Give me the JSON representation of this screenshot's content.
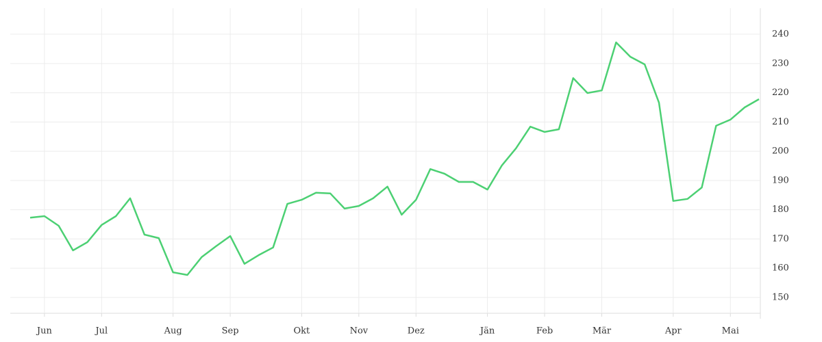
{
  "chart_data": {
    "type": "line",
    "categories": [
      null,
      "Jun",
      null,
      null,
      null,
      "Jul",
      null,
      null,
      null,
      null,
      "Aug",
      null,
      null,
      null,
      "Sep",
      null,
      null,
      null,
      null,
      "Okt",
      null,
      null,
      null,
      "Nov",
      null,
      null,
      null,
      "Dez",
      null,
      null,
      null,
      null,
      "Jän",
      null,
      null,
      null,
      "Feb",
      null,
      null,
      null,
      "Mär",
      null,
      null,
      null,
      null,
      "Apr",
      null,
      null,
      null,
      "Mai",
      null,
      null
    ],
    "series": [
      {
        "color": "#4cd073",
        "values": [
          177.3,
          177.8,
          174.5,
          166.1,
          168.9,
          174.8,
          177.8,
          183.9,
          171.5,
          170.3,
          158.6,
          157.7,
          163.8,
          167.5,
          171.0,
          161.5,
          164.5,
          167.1,
          182.0,
          183.4,
          185.8,
          185.6,
          180.4,
          181.3,
          183.9,
          187.9,
          178.3,
          183.4,
          193.9,
          192.3,
          189.5,
          189.5,
          186.9,
          195.1,
          201.0,
          208.4,
          206.6,
          207.5,
          225.0,
          219.9,
          220.8,
          237.2,
          232.3,
          229.7,
          216.6,
          183.0,
          183.7,
          187.6,
          208.7,
          210.8,
          215.0,
          217.8
        ]
      }
    ],
    "ylim": [
      144.6,
      248.9
    ],
    "yticks": [
      150,
      160,
      170,
      180,
      190,
      200,
      210,
      220,
      230,
      240
    ],
    "grid": true
  }
}
